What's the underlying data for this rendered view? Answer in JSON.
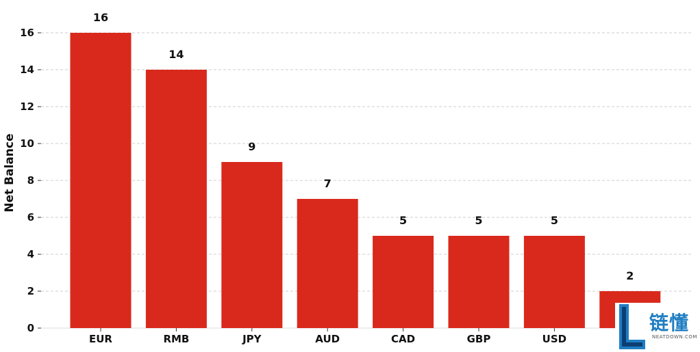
{
  "chart_data": {
    "type": "bar",
    "title": "",
    "xlabel": "",
    "ylabel": "Net Balance",
    "categories": [
      "EUR",
      "RMB",
      "JPY",
      "AUD",
      "CAD",
      "GBP",
      "USD",
      ""
    ],
    "values": [
      16,
      14,
      9,
      7,
      5,
      5,
      5,
      2
    ],
    "data_labels": [
      "16",
      "14",
      "9",
      "7",
      "5",
      "5",
      "5",
      "2"
    ],
    "ylim": [
      0,
      16
    ],
    "yticks": [
      0,
      2,
      4,
      6,
      8,
      10,
      12,
      14,
      16
    ],
    "grid": "horizontal dashed",
    "legend": "none",
    "colors": {
      "bar": "#d9291c",
      "grid": "#cccccc",
      "text": "#111111"
    }
  },
  "watermark": {
    "brand_chars": "链懂",
    "url": "NEATDOWN.COM",
    "colors": {
      "logo_blue": "#1f7ec2",
      "logo_dark": "#0d3e73"
    }
  }
}
